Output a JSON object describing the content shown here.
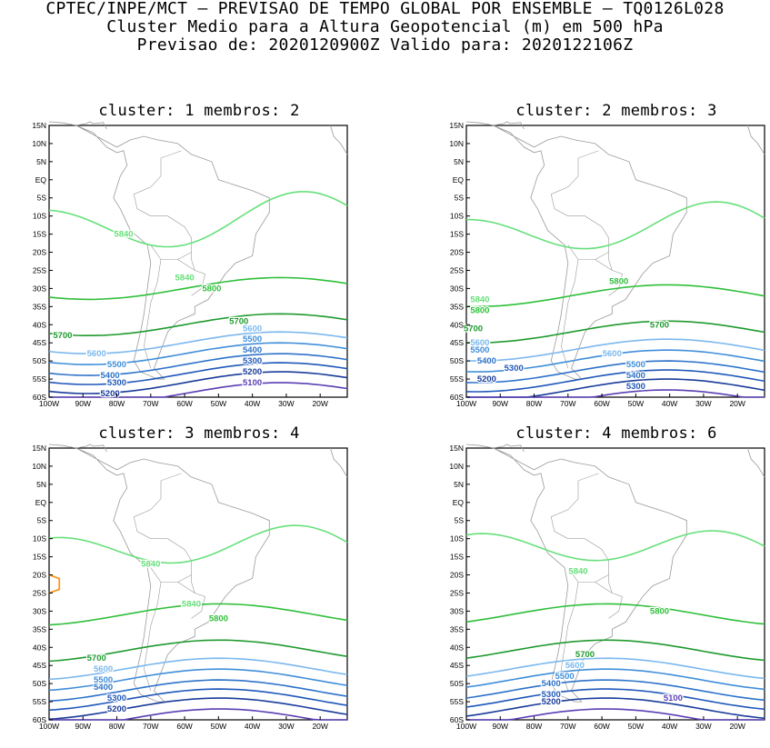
{
  "header": {
    "line1": "CPTEC/INPE/MCT – PREVISAO DE TEMPO GLOBAL POR ENSEMBLE – TQ0126L028",
    "line2": "Cluster Medio para a Altura Geopotencial (m) em 500 hPa",
    "line3": "Previsao de: 2020120900Z    Valido para: 2020122106Z"
  },
  "axes": {
    "lat_labels": [
      "15N",
      "10N",
      "5N",
      "EQ",
      "5S",
      "10S",
      "15S",
      "20S",
      "25S",
      "30S",
      "35S",
      "40S",
      "45S",
      "50S",
      "55S",
      "60S"
    ],
    "lon_labels": [
      "100W",
      "90W",
      "80W",
      "70W",
      "60W",
      "50W",
      "40W",
      "30W",
      "20W"
    ]
  },
  "colors": {
    "5100": "#5a3fb4",
    "5200": "#1a3c9a",
    "5300": "#1f57b8",
    "5400": "#2d72c9",
    "5500": "#3f8ed9",
    "5600": "#7bb8ee",
    "5700": "#1f9a2e",
    "5800": "#2fbf3a",
    "5840": "#66e07a",
    "5880": "#f59a1e",
    "coast": "#9a9a9a"
  },
  "panels": [
    {
      "title": "cluster: 1   membros: 2",
      "labels": [
        {
          "text": "5840",
          "lon": -78,
          "lat": -15,
          "level": "5840"
        },
        {
          "text": "5840",
          "lon": -60,
          "lat": -27,
          "level": "5840"
        },
        {
          "text": "5800",
          "lon": -52,
          "lat": -30,
          "level": "5800"
        },
        {
          "text": "5700",
          "lon": -96,
          "lat": -43,
          "level": "5700"
        },
        {
          "text": "5700",
          "lon": -44,
          "lat": -39,
          "level": "5700"
        },
        {
          "text": "5600",
          "lon": -40,
          "lat": -41,
          "level": "5600"
        },
        {
          "text": "5600",
          "lon": -86,
          "lat": -48,
          "level": "5600"
        },
        {
          "text": "5500",
          "lon": -40,
          "lat": -44,
          "level": "5500"
        },
        {
          "text": "5500",
          "lon": -80,
          "lat": -51,
          "level": "5500"
        },
        {
          "text": "5400",
          "lon": -40,
          "lat": -47,
          "level": "5400"
        },
        {
          "text": "5400",
          "lon": -82,
          "lat": -54,
          "level": "5400"
        },
        {
          "text": "5300",
          "lon": -40,
          "lat": -50,
          "level": "5300"
        },
        {
          "text": "5300",
          "lon": -80,
          "lat": -56,
          "level": "5300"
        },
        {
          "text": "5200",
          "lon": -40,
          "lat": -53,
          "level": "5200"
        },
        {
          "text": "5200",
          "lon": -82,
          "lat": -59,
          "level": "5200"
        },
        {
          "text": "5100",
          "lon": -40,
          "lat": -56,
          "level": "5100"
        }
      ]
    },
    {
      "title": "cluster: 2   membros: 3",
      "labels": [
        {
          "text": "5840",
          "lon": -96,
          "lat": -33,
          "level": "5840"
        },
        {
          "text": "5800",
          "lon": -96,
          "lat": -36,
          "level": "5800"
        },
        {
          "text": "5800",
          "lon": -55,
          "lat": -28,
          "level": "5800"
        },
        {
          "text": "5700",
          "lon": -98,
          "lat": -41,
          "level": "5700"
        },
        {
          "text": "5700",
          "lon": -43,
          "lat": -40,
          "level": "5700"
        },
        {
          "text": "5600",
          "lon": -96,
          "lat": -45,
          "level": "5600"
        },
        {
          "text": "5600",
          "lon": -57,
          "lat": -48,
          "level": "5600"
        },
        {
          "text": "5500",
          "lon": -96,
          "lat": -47,
          "level": "5500"
        },
        {
          "text": "5500",
          "lon": -50,
          "lat": -51,
          "level": "5500"
        },
        {
          "text": "5400",
          "lon": -94,
          "lat": -50,
          "level": "5400"
        },
        {
          "text": "5400",
          "lon": -50,
          "lat": -54,
          "level": "5400"
        },
        {
          "text": "5300",
          "lon": -86,
          "lat": -52,
          "level": "5300"
        },
        {
          "text": "5300",
          "lon": -50,
          "lat": -57,
          "level": "5300"
        },
        {
          "text": "5200",
          "lon": -94,
          "lat": -55,
          "level": "5200"
        }
      ]
    },
    {
      "title": "cluster: 3   membros: 4",
      "labels": [
        {
          "text": "5840",
          "lon": -70,
          "lat": -17,
          "level": "5840"
        },
        {
          "text": "5840",
          "lon": -58,
          "lat": -28,
          "level": "5840"
        },
        {
          "text": "5800",
          "lon": -50,
          "lat": -32,
          "level": "5800"
        },
        {
          "text": "5700",
          "lon": -86,
          "lat": -43,
          "level": "5700"
        },
        {
          "text": "5600",
          "lon": -84,
          "lat": -46,
          "level": "5600"
        },
        {
          "text": "5500",
          "lon": -84,
          "lat": -49,
          "level": "5500"
        },
        {
          "text": "5400",
          "lon": -84,
          "lat": -51,
          "level": "5400"
        },
        {
          "text": "5300",
          "lon": -80,
          "lat": -54,
          "level": "5300"
        },
        {
          "text": "5200",
          "lon": -80,
          "lat": -57,
          "level": "5200"
        }
      ]
    },
    {
      "title": "cluster: 4   membros: 6",
      "labels": [
        {
          "text": "5840",
          "lon": -67,
          "lat": -19,
          "level": "5840"
        },
        {
          "text": "5800",
          "lon": -43,
          "lat": -30,
          "level": "5800"
        },
        {
          "text": "5700",
          "lon": -65,
          "lat": -42,
          "level": "5700"
        },
        {
          "text": "5600",
          "lon": -68,
          "lat": -45,
          "level": "5600"
        },
        {
          "text": "5500",
          "lon": -71,
          "lat": -48,
          "level": "5500"
        },
        {
          "text": "5400",
          "lon": -75,
          "lat": -50,
          "level": "5400"
        },
        {
          "text": "5300",
          "lon": -75,
          "lat": -53,
          "level": "5300"
        },
        {
          "text": "5200",
          "lon": -75,
          "lat": -55,
          "level": "5200"
        },
        {
          "text": "5100",
          "lon": -39,
          "lat": -54,
          "level": "5100"
        }
      ]
    }
  ]
}
